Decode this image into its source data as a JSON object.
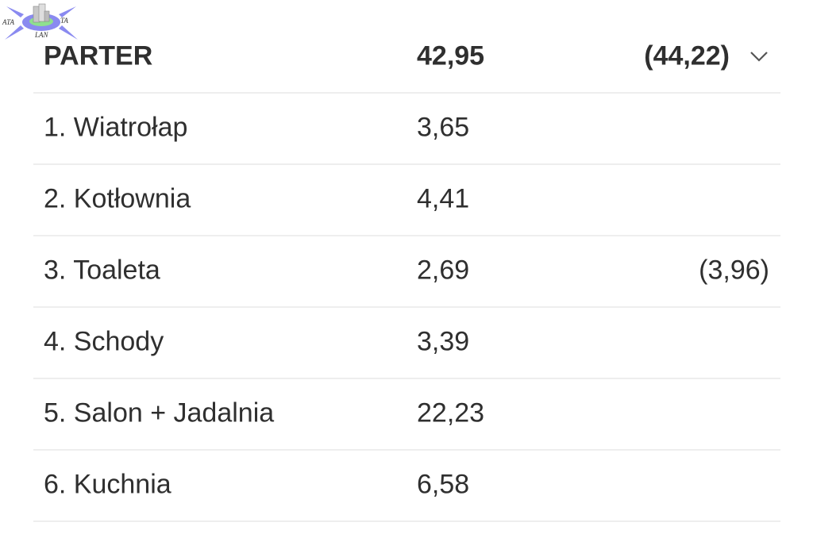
{
  "logo": {
    "text_left": "ATA",
    "text_right": "TA",
    "text_bottom": "LAN"
  },
  "header": {
    "name": "PARTER",
    "value": "42,95",
    "extra": "(44,22)",
    "icon": "chevron-down-icon"
  },
  "rows": [
    {
      "name": "1. Wiatrołap",
      "value": "3,65",
      "extra": ""
    },
    {
      "name": "2. Kotłownia",
      "value": "4,41",
      "extra": ""
    },
    {
      "name": "3. Toaleta",
      "value": "2,69",
      "extra": "(3,96)"
    },
    {
      "name": "4. Schody",
      "value": "3,39",
      "extra": ""
    },
    {
      "name": "5. Salon + Jadalnia",
      "value": "22,23",
      "extra": ""
    },
    {
      "name": "6. Kuchnia",
      "value": "6,58",
      "extra": ""
    }
  ]
}
